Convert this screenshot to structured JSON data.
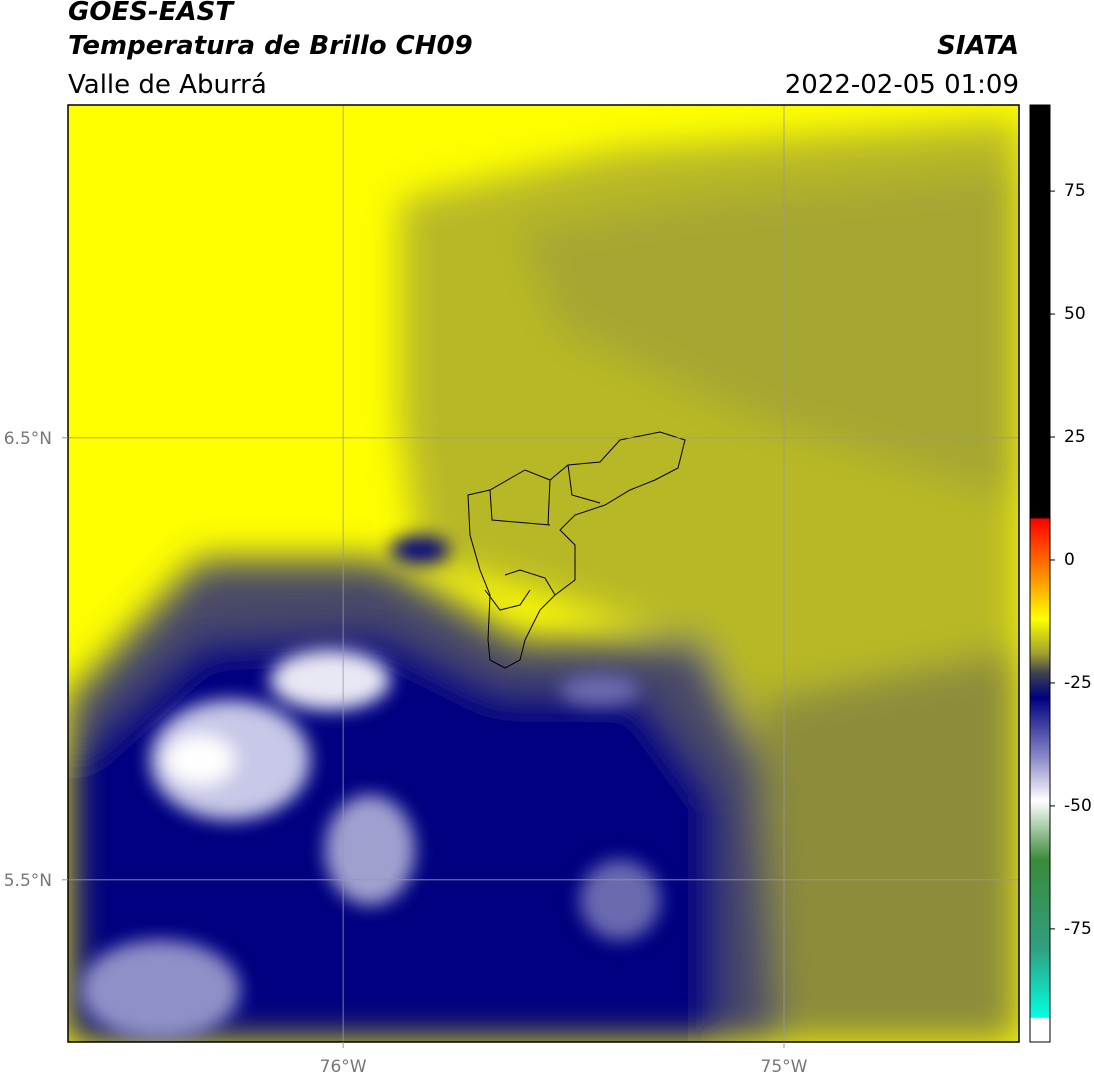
{
  "map": {
    "title": "GOES-EAST",
    "subtitle": "Temperatura de Brillo CH09",
    "region": "Valle de Aburrá",
    "source": "SIATA",
    "datetime": "2022-02-05 01:09",
    "xlim": [
      -76.624,
      -74.467
    ],
    "ylim": [
      5.133,
      7.253
    ],
    "xticks": [
      {
        "value": -76,
        "label": "76°W"
      },
      {
        "value": -75,
        "label": "75°W"
      }
    ],
    "yticks": [
      {
        "value": 6.5,
        "label": "6.5°N"
      },
      {
        "value": 5.5,
        "label": "5.5°N"
      }
    ],
    "grid": true,
    "colorbar": {
      "lim": [
        -98,
        92.5
      ],
      "ticks": [
        75,
        50,
        25,
        0,
        -25,
        -50,
        -75
      ],
      "stops": [
        {
          "value": -98,
          "color": "#ffffff"
        },
        {
          "value": -93.2,
          "color": "#ffffff"
        },
        {
          "value": -93,
          "color": "#00ffe0"
        },
        {
          "value": -79,
          "color": "#30a080"
        },
        {
          "value": -61,
          "color": "#3a8a3a"
        },
        {
          "value": -49,
          "color": "#ffffff"
        },
        {
          "value": -40,
          "color": "#8888c8"
        },
        {
          "value": -28,
          "color": "#000080"
        },
        {
          "value": -23,
          "color": "#404050"
        },
        {
          "value": -19,
          "color": "#a0a030"
        },
        {
          "value": -12,
          "color": "#ffff00"
        },
        {
          "value": -3,
          "color": "#ff8c00"
        },
        {
          "value": 8.4,
          "color": "#ff0000"
        },
        {
          "value": 8.5,
          "color": "#000000"
        },
        {
          "value": 92.5,
          "color": "#000000"
        }
      ]
    }
  }
}
